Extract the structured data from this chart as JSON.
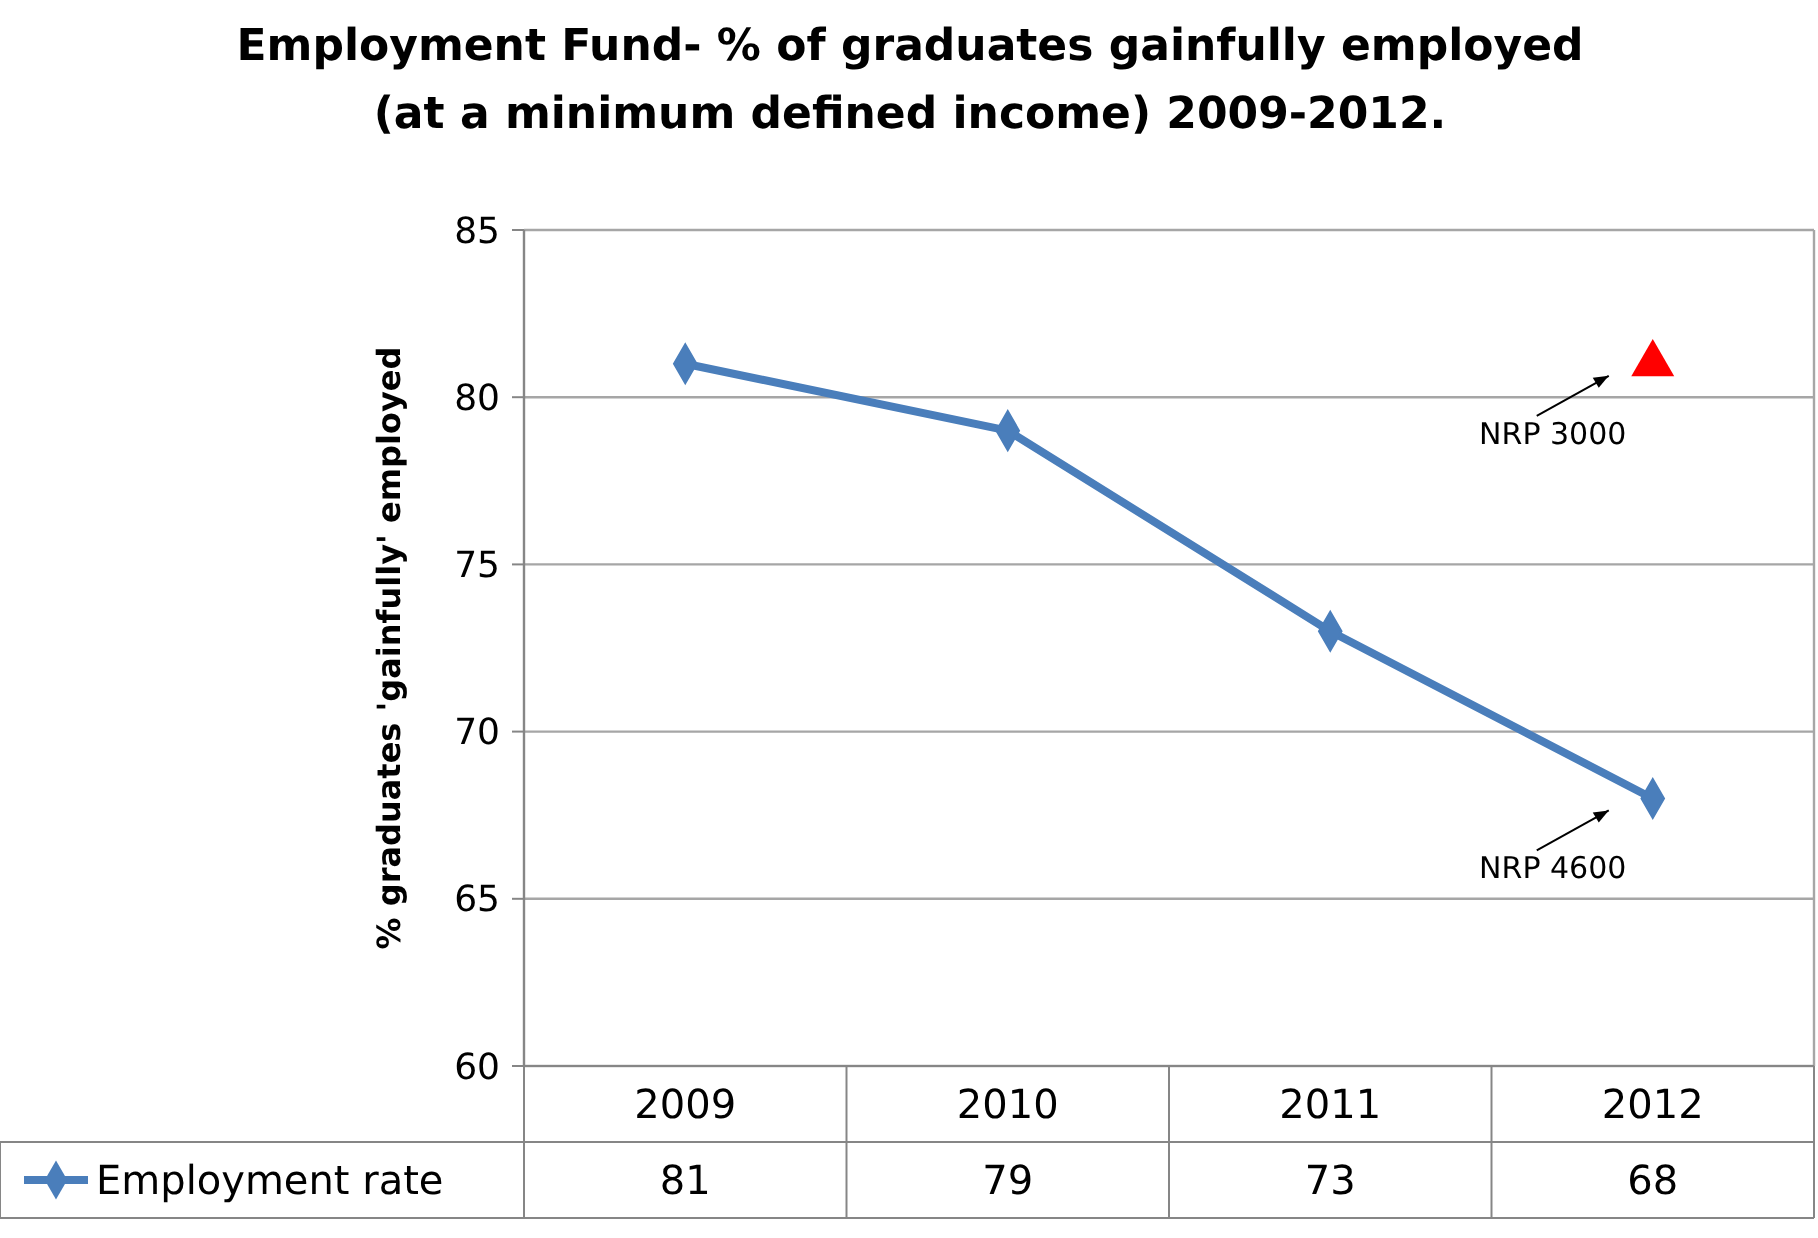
{
  "chart_data": {
    "type": "line",
    "title": "Employment Fund- % of graduates gainfully employed\n(at a minimum defined income) 2009-2012.",
    "ylabel": "% graduates 'gainfully' employed",
    "categories": [
      "2009",
      "2010",
      "2011",
      "2012"
    ],
    "series": [
      {
        "name": "Employment rate",
        "color": "#4a7ebb",
        "values": [
          81,
          79,
          73,
          68
        ],
        "value_labels": [
          "81",
          "79",
          "73",
          "68"
        ],
        "marker": "diamond"
      },
      {
        "type": "scatter",
        "color": "#ff0000",
        "values": [
          null,
          null,
          null,
          81
        ],
        "marker": "triangle"
      }
    ],
    "annotations": [
      {
        "text": "NRP 3000",
        "x": "2012",
        "y": 81
      },
      {
        "text": "NRP 4600",
        "x": "2012",
        "y": 68
      }
    ],
    "ylim": [
      60,
      85
    ],
    "yticks": [
      60,
      65,
      70,
      75,
      80,
      85
    ],
    "grid": "y",
    "legend": "bottom"
  }
}
